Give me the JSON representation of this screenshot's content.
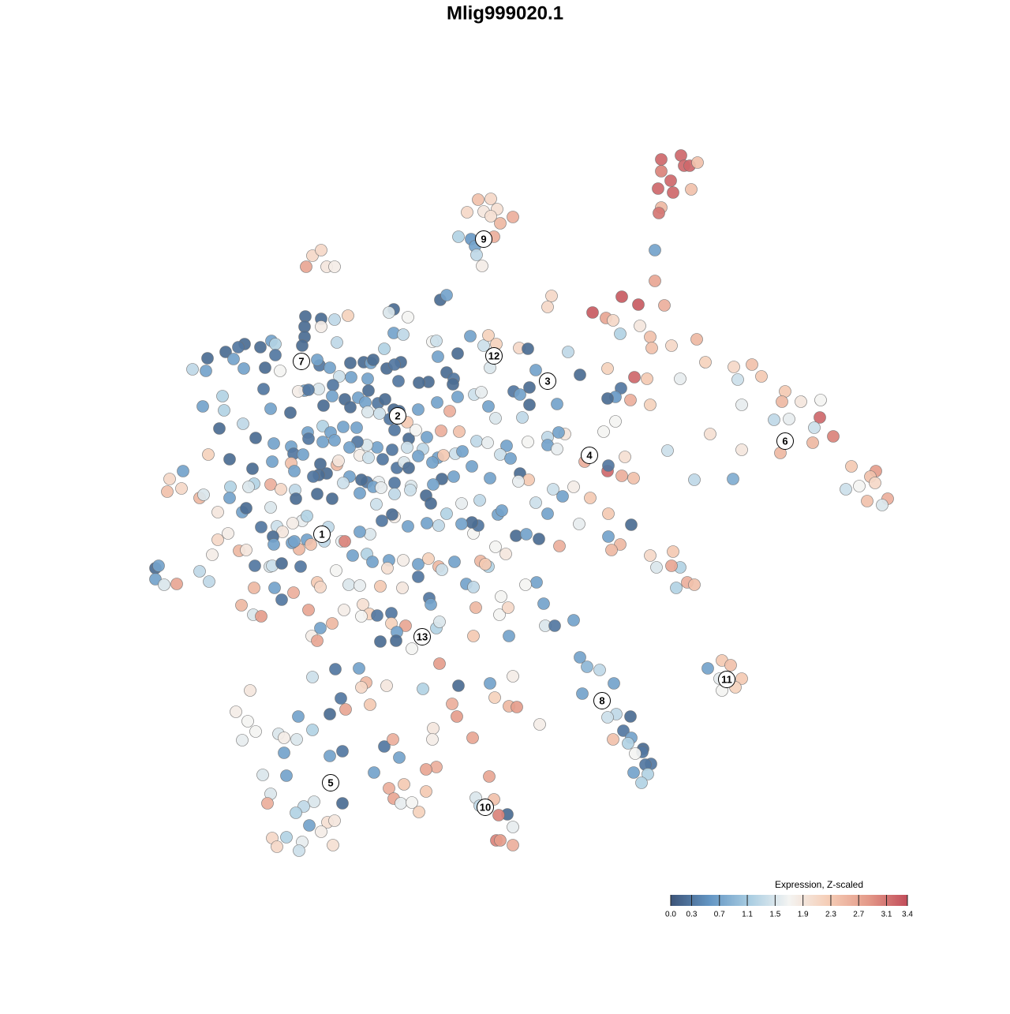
{
  "chart_data": {
    "type": "scatter",
    "title": "Mlig999020.1",
    "xlim": [
      0,
      1280
    ],
    "ylim": [
      1280,
      0
    ],
    "x": [
      838,
      863,
      867,
      874,
      884,
      838,
      850,
      834,
      853,
      876,
      838,
      835,
      830,
      830,
      606,
      622,
      592,
      613,
      630,
      622,
      650,
      634,
      581,
      597,
      626,
      602,
      604,
      611,
      396,
      407,
      388,
      414,
      424,
      699,
      694,
      788,
      809,
      751,
      768,
      777,
      842,
      811,
      786,
      824,
      826,
      851,
      883,
      770,
      804,
      820,
      862,
      787,
      780,
      770,
      799,
      824,
      894,
      930,
      953,
      965,
      935,
      940,
      995,
      1015,
      1040,
      1039,
      991,
      981,
      1000,
      1032,
      1056,
      1030,
      989,
      900,
      940,
      1079,
      1110,
      1103,
      1109,
      1072,
      1089,
      1125,
      1118,
      1099,
      929,
      880,
      846,
      770,
      771,
      788,
      803,
      792,
      748,
      771,
      800,
      771,
      786,
      775,
      824,
      853,
      832,
      862,
      851,
      871,
      880,
      857,
      897,
      915,
      926,
      940,
      915,
      932,
      912,
      735,
      744,
      760,
      778,
      738,
      781,
      770,
      799,
      790,
      800,
      777,
      796,
      815,
      814,
      805,
      825,
      818,
      821,
      803,
      813,
      620,
      626,
      603,
      608,
      643,
      632,
      650,
      629,
      634,
      650,
      299,
      314,
      324,
      307,
      317,
      353,
      360,
      376,
      378,
      396,
      418,
      360,
      434,
      418,
      333,
      363,
      398,
      343,
      339,
      385,
      375,
      392,
      415,
      424,
      407,
      383,
      363,
      345,
      351,
      379,
      422,
      434,
      432,
      438,
      396,
      425,
      455,
      464,
      458,
      490,
      469,
      487,
      498,
      506,
      474,
      493,
      512,
      499,
      508,
      522,
      531,
      540,
      553,
      540,
      549,
      548,
      599,
      573,
      579,
      581,
      536,
      557,
      621,
      627,
      650,
      645,
      655,
      684,
      558,
      566,
      499,
      493,
      517,
      441,
      424,
      407,
      387,
      386,
      386,
      383,
      407,
      499,
      511,
      427,
      344,
      349,
      330,
      310,
      286,
      263,
      296,
      302,
      349,
      336,
      355,
      309,
      261,
      244,
      405,
      418,
      402,
      444,
      461,
      470,
      473,
      490,
      508,
      500,
      487,
      548,
      553,
      555,
      580,
      596,
      613,
      619,
      629,
      658,
      669,
      621,
      566,
      575,
      574,
      679,
      720,
      735,
      543,
      531,
      505,
      466,
      445,
      430,
      422,
      404,
      386,
      378,
      334,
      391,
      282,
      257,
      284,
      343,
      368,
      410,
      421,
      437,
      444,
      454,
      467,
      463,
      479,
      488,
      499,
      494,
      506,
      516,
      530,
      554,
      570,
      580,
      601,
      610,
      619,
      651,
      659,
      671,
      671,
      706,
      662,
      628,
      278,
      308,
      390,
      409,
      419,
      435,
      452,
      466,
      481,
      500,
      518,
      527,
      541,
      559,
      582,
      555,
      536,
      516,
      497,
      478,
      465,
      453,
      443,
      424,
      409,
      391,
      369,
      372,
      347,
      324,
      264,
      291,
      320,
      345,
      369,
      384,
      406,
      414,
      427,
      429,
      443,
      456,
      467,
      485,
      503,
      512,
      518,
      530,
      548,
      562,
      577,
      586,
      604,
      618,
      642,
      669,
      694,
      716,
      708,
      694,
      706,
      741,
      765,
      780,
      634,
      647,
      659,
      670,
      657,
      621,
      598,
      575,
      560,
      549,
      521,
      500,
      480,
      465,
      458,
      435,
      404,
      397,
      373,
      343,
      322,
      315,
      292,
      291,
      276,
      307,
      312,
      343,
      356,
      374,
      375,
      402,
      421,
      456,
      477,
      473,
      483,
      500,
      520,
      540,
      546,
      566,
      585,
      608,
      631,
      636,
      679,
      701,
      713,
      727,
      694,
      734,
      232,
      215,
      230,
      212,
      253,
      258,
      197,
      201,
      197,
      208,
      224,
      253,
      265,
      269,
      276,
      289,
      303,
      312,
      323,
      342,
      345,
      357,
      381,
      379,
      389,
      394,
      408,
      416,
      433,
      437,
      447,
      465,
      472,
      493,
      491,
      511,
      530,
      543,
      556,
      560,
      576,
      609,
      619,
      641,
      351,
      383,
      358,
      346,
      370,
      347,
      331,
      322,
      348,
      357,
      372,
      402,
      406,
      426,
      442,
      306,
      321,
      331,
      391,
      395,
      402,
      406,
      421,
      436,
      456,
      460,
      468,
      478,
      496,
      458,
      496,
      514,
      503,
      482,
      502,
      522,
      544,
      546,
      553,
      557,
      600,
      603,
      633,
      644,
      645,
      635,
      689,
      691,
      703,
      727,
      680,
      666,
      591,
      600,
      482,
      510,
      530,
      654,
      667,
      683,
      709,
      628,
      615,
      600,
      606,
      598,
      585,
      556,
      541,
      517,
      500,
      484,
      497,
      469,
      456,
      411,
      373,
      389,
      371
    ],
    "y": [
      202,
      197,
      210,
      210,
      206,
      217,
      229,
      239,
      244,
      240,
      263,
      270,
      317,
      356,
      253,
      252,
      269,
      268,
      265,
      274,
      275,
      283,
      300,
      303,
      300,
      312,
      323,
      337,
      324,
      317,
      338,
      338,
      338,
      375,
      389,
      376,
      386,
      396,
      403,
      406,
      387,
      413,
      423,
      427,
      441,
      438,
      430,
      467,
      478,
      480,
      480,
      492,
      503,
      505,
      507,
      513,
      459,
      465,
      462,
      477,
      481,
      513,
      496,
      509,
      507,
      529,
      509,
      532,
      531,
      542,
      553,
      561,
      574,
      550,
      570,
      591,
      597,
      604,
      612,
      620,
      616,
      632,
      640,
      635,
      607,
      608,
      571,
      597,
      590,
      603,
      606,
      579,
      631,
      651,
      665,
      680,
      690,
      697,
      704,
      699,
      719,
      719,
      717,
      738,
      741,
      745,
      847,
      837,
      843,
      860,
      875,
      871,
      860,
      833,
      845,
      849,
      866,
      879,
      905,
      909,
      908,
      926,
      935,
      937,
      942,
      949,
      953,
      955,
      968,
      969,
      981,
      979,
      992,
      984,
      1013,
      1011,
      1021,
      1032,
      1033,
      1048,
      1065,
      1065,
      1071,
      902,
      914,
      927,
      938,
      875,
      930,
      935,
      937,
      908,
      925,
      905,
      954,
      952,
      958,
      982,
      983,
      1016,
      1006,
      1018,
      1022,
      1030,
      1046,
      1042,
      1040,
      1054,
      1067,
      1061,
      1062,
      1073,
      1078,
      1071,
      1018,
      885,
      899,
      858,
      848,
      847,
      865,
      871,
      869,
      893,
      946,
      937,
      960,
      979,
      999,
      994,
      1012,
      1018,
      1017,
      1029,
      1003,
      972,
      975,
      923,
      937,
      935,
      892,
      908,
      869,
      873,
      841,
      866,
      884,
      857,
      895,
      896,
      918,
      380,
      374,
      392,
      396,
      402,
      400,
      405,
      404,
      401,
      414,
      427,
      438,
      414,
      422,
      424,
      434,
      432,
      436,
      440,
      436,
      446,
      454,
      455,
      440,
      450,
      466,
      470,
      467,
      470,
      468,
      463,
      466,
      456,
      460,
      459,
      460,
      456,
      467,
      459,
      462,
      442,
      433,
      432,
      452,
      448,
      426,
      438,
      425,
      436,
      441,
      442,
      466,
      472,
      480,
      487,
      469,
      446,
      475,
      484,
      485,
      483,
      480,
      478,
      477,
      488,
      493,
      495,
      496,
      493,
      494,
      502,
      515,
      520,
      518,
      523,
      514,
      502,
      506,
      516,
      504,
      495,
      510,
      511,
      506,
      519,
      531,
      521,
      535,
      519,
      510,
      521,
      503,
      500,
      497,
      515,
      496,
      500,
      491,
      513,
      512,
      529,
      530,
      543,
      537,
      548,
      540,
      548,
      541,
      542,
      522,
      524,
      545,
      556,
      545,
      554,
      546,
      547,
      580,
      569,
      567,
      570,
      567,
      564,
      560,
      567,
      558,
      560,
      556,
      566,
      575,
      562,
      555,
      576,
      582,
      594,
      585,
      587,
      576,
      588,
      600,
      589,
      584,
      604,
      577,
      580,
      582,
      593,
      586,
      593,
      578,
      586,
      577,
      575,
      572,
      559,
      561,
      565,
      560,
      554,
      550,
      548,
      564,
      569,
      585,
      547,
      534,
      576,
      581,
      600,
      608,
      610,
      606,
      591,
      604,
      607,
      614,
      616,
      612,
      611,
      611,
      608,
      612,
      602,
      604,
      597,
      614,
      613,
      617,
      617,
      631,
      649,
      649,
      644,
      643,
      620,
      621,
      632,
      626,
      632,
      625,
      639,
      617,
      618,
      626,
      621,
      628,
      638,
      651,
      638,
      634,
      652,
      647,
      637,
      620,
      629,
      617,
      651,
      664,
      597,
      607,
      619,
      623,
      631,
      627,
      720,
      717,
      734,
      741,
      740,
      724,
      737,
      703,
      684,
      676,
      698,
      697,
      717,
      718,
      717,
      714,
      718,
      696,
      684,
      690,
      677,
      668,
      686,
      686,
      704,
      702,
      712,
      710,
      720,
      710,
      715,
      708,
      718,
      722,
      712,
      711,
      718,
      702,
      667,
      660,
      674,
      680,
      688,
      690,
      668,
      745,
      745,
      760,
      751,
      738,
      744,
      723,
      741,
      767,
      779,
      781,
      773,
      806,
      812,
      796,
      790,
      773,
      742,
      766,
      778,
      780,
      777,
      781,
      790,
      793,
      801,
      813,
      812,
      822,
      758,
      766,
      796,
      788,
      806,
      770,
      779,
      770,
      806,
      756,
      765,
      793,
      793,
      786,
      738,
      741,
      740,
      744,
      743,
      745,
      731,
      679,
      677,
      683,
      692,
      693,
      715,
      676,
      666,
      662,
      664,
      666,
      663,
      667,
      655,
      660,
      652,
      677,
      674,
      686,
      686,
      654,
      663
    ],
    "values": [
      3.2,
      3.2,
      3.2,
      3.2,
      2.4,
      3.0,
      3.2,
      3.2,
      3.2,
      2.4,
      2.5,
      3.1,
      0.7,
      2.7,
      2.4,
      2.1,
      2.1,
      1.9,
      2.0,
      2.0,
      2.6,
      2.5,
      1.2,
      0.6,
      2.6,
      0.7,
      1.3,
      1.8,
      2.1,
      2.1,
      2.7,
      1.9,
      1.8,
      2.1,
      2.1,
      3.3,
      3.3,
      3.3,
      2.7,
      2.1,
      2.6,
      1.9,
      1.2,
      2.4,
      2.4,
      2.1,
      2.5,
      2.2,
      3.2,
      2.3,
      1.6,
      0.3,
      0.6,
      0.2,
      2.6,
      2.2,
      2.2,
      2.1,
      2.4,
      2.3,
      1.4,
      1.6,
      2.3,
      1.9,
      1.7,
      3.2,
      2.5,
      1.3,
      1.6,
      1.4,
      3.0,
      2.5,
      2.5,
      2.0,
      1.9,
      2.3,
      2.8,
      2.4,
      2.1,
      1.4,
      1.7,
      2.6,
      1.5,
      2.4,
      0.8,
      1.3,
      1.4,
      3.2,
      0.3,
      2.6,
      2.4,
      2.0,
      2.3,
      2.3,
      0.2,
      0.7,
      2.5,
      2.5,
      2.1,
      2.3,
      1.5,
      1.2,
      2.7,
      2.6,
      2.4,
      1.2,
      0.7,
      2.3,
      2.4,
      2.3,
      1.7,
      2.2,
      1.6,
      0.7,
      0.9,
      1.3,
      0.7,
      0.7,
      1.3,
      1.4,
      0.2,
      0.3,
      0.7,
      2.4,
      1.2,
      0.2,
      0.3,
      1.7,
      0.3,
      0.3,
      1.2,
      0.7,
      1.2,
      2.7,
      2.4,
      1.5,
      1.3,
      0.2,
      3.0,
      1.6,
      3.0,
      2.8,
      2.6,
      1.8,
      1.7,
      1.7,
      1.6,
      1.9,
      1.5,
      1.8,
      1.5,
      0.7,
      1.2,
      0.2,
      0.7,
      0.3,
      0.7,
      1.5,
      0.7,
      1.5,
      1.5,
      2.6,
      1.3,
      1.2,
      0.7,
      2.0,
      1.9,
      1.8,
      1.6,
      1.2,
      2.1,
      2.1,
      1.4,
      2.0,
      0.2,
      0.3,
      2.7,
      1.4,
      0.3,
      0.7,
      2.5,
      2.1,
      1.9,
      2.3,
      0.3,
      2.6,
      0.7,
      0.7,
      2.6,
      2.3,
      2.7,
      1.6,
      1.7,
      2.2,
      2.3,
      2.6,
      2.7,
      1.9,
      1.8,
      2.7,
      2.6,
      2.8,
      0.2,
      1.2,
      2.8,
      0.7,
      2.2,
      1.8,
      2.5,
      2.8,
      1.8,
      0.2,
      0.7,
      0.2,
      1.5,
      1.7,
      2.2,
      1.3,
      0.2,
      0.2,
      0.2,
      0.2,
      0.2,
      1.8,
      0.7,
      1.3,
      1.3,
      0.7,
      1.2,
      0.2,
      0.2,
      0.2,
      0.2,
      0.7,
      0.3,
      0.3,
      0.2,
      1.7,
      0.7,
      0.7,
      1.3,
      0.3,
      0.7,
      0.7,
      0.2,
      0.2,
      0.7,
      0.2,
      0.2,
      0.2,
      0.3,
      1.2,
      1.7,
      1.4,
      0.7,
      0.2,
      0.7,
      1.4,
      2.2,
      2.2,
      2.1,
      0.2,
      1.5,
      0.2,
      0.3,
      0.2,
      0.7,
      1.3,
      0.2,
      0.2,
      0.2,
      0.3,
      0.7,
      0.7,
      1.4,
      0.3,
      1.5,
      0.7,
      1.8,
      0.3,
      0.3,
      1.2,
      0.7,
      1.2,
      0.7,
      0.2,
      0.2,
      0.7,
      0.2,
      0.2,
      0.7,
      0.2,
      0.7,
      0.3,
      0.2,
      0.2,
      0.3,
      0.2,
      2.3,
      0.7,
      0.7,
      2.6,
      0.7,
      1.4,
      1.6,
      0.7,
      0.3,
      0.7,
      0.2,
      0.2,
      0.7,
      1.3,
      1.5,
      0.2,
      1.3,
      0.7,
      1.2,
      0.7,
      0.7,
      0.7,
      1.5,
      1.4,
      0.3,
      0.2,
      1.7,
      0.7,
      2.6,
      2.4,
      0.7,
      1.3,
      1.4,
      0.3,
      0.7,
      1.5,
      0.3,
      0.7,
      0.7,
      0.7,
      0.3,
      0.7,
      0.3,
      0.7,
      0.2,
      2.2,
      0.2,
      0.2,
      0.7,
      2.4,
      0.7,
      0.2,
      0.2,
      2.5,
      1.9,
      0.7,
      1.8,
      1.4,
      0.3,
      0.3,
      1.5,
      0.2,
      0.7,
      0.7,
      2.3,
      1.4,
      0.7,
      1.3,
      1.6,
      0.7,
      1.7,
      1.3,
      1.9,
      0.7,
      0.7,
      1.6,
      2.6,
      1.7,
      1.7,
      1.4,
      0.7,
      0.2,
      2.3,
      1.6,
      0.7,
      0.7,
      0.7,
      0.2,
      0.7,
      1.5,
      0.3,
      1.6,
      0.3,
      0.2,
      1.4,
      0.2,
      0.3,
      0.7,
      2.6,
      1.2,
      1.5,
      1.2,
      0.7,
      1.9,
      0.7,
      0.2,
      1.5,
      2.1,
      1.3,
      0.2,
      0.2,
      0.2,
      0.7,
      1.4,
      0.7,
      1.6,
      1.3,
      1.4,
      0.2,
      0.2,
      1.2,
      1.6,
      1.3,
      0.7,
      0.7,
      1.4,
      1.4,
      0.7,
      1.8,
      0.7,
      1.6,
      0.7,
      2.1,
      2.1,
      2.4,
      2.5,
      1.5,
      0.2,
      0.7,
      0.7,
      1.5,
      2.7,
      1.3,
      1.3,
      1.8,
      2.1,
      1.8,
      2.5,
      1.9,
      0.3,
      1.5,
      1.4,
      0.2,
      0.3,
      2.5,
      0.7,
      2.4,
      1.6,
      1.3,
      1.6,
      3.0,
      0.7,
      1.2,
      0.7,
      0.7,
      2.0,
      1.8,
      0.7,
      2.2,
      2.5,
      1.4,
      0.7,
      2.5,
      1.2,
      1.9,
      1.4,
      1.6,
      1.9,
      0.2,
      0.7,
      0.7,
      0.3,
      2.5,
      0.7,
      0.3,
      2.6,
      2.3,
      2.1,
      1.7,
      1.5,
      2.5,
      1.5,
      2.8,
      2.7,
      1.8,
      2.7,
      0.7,
      2.5,
      1.8,
      1.6,
      2.0,
      2.2,
      0.3,
      0.3,
      1.7,
      2.2,
      2.7,
      0.7,
      0.2,
      0.2,
      1.7,
      0.3,
      0.7,
      1.2,
      1.5,
      2.3,
      2.5,
      1.7,
      2.1,
      0.7,
      1.7,
      0.7,
      1.5,
      0.3,
      0.7,
      0.7,
      1.7,
      0.7,
      1.3,
      2.3,
      1.9,
      0.3,
      0.2,
      0.7,
      0.2,
      2.6,
      1.7,
      2.3,
      1.7,
      0.3,
      0.2,
      0.7,
      1.3,
      0.7,
      0.7,
      1.8,
      0.3,
      0.2,
      1.5,
      0.7,
      1.3,
      0.7,
      1.2,
      1.8
    ],
    "cluster_labels": {
      "labels": [
        "1",
        "2",
        "3",
        "4",
        "5",
        "6",
        "7",
        "8",
        "9",
        "10",
        "11",
        "12",
        "13"
      ],
      "x": [
        408,
        504,
        694,
        747,
        419,
        995,
        382,
        763,
        613,
        615,
        921,
        626,
        535
      ],
      "y": [
        677,
        527,
        483,
        577,
        992,
        559,
        458,
        888,
        303,
        1023,
        861,
        451,
        807
      ]
    },
    "legend_title": "Expression, Z-scaled",
    "clim": [
      0,
      3.4
    ],
    "colors": [
      "#3d5579",
      "#6496c4",
      "#a9cde2",
      "#f4f4f2",
      "#f5cdb6",
      "#e49a89",
      "#c24d5a"
    ],
    "cticks": [
      {
        "value": 0,
        "label": "0.0"
      },
      0.3,
      0.7,
      1.1,
      1.5,
      1.9,
      2.3,
      2.7,
      3.1,
      3.4
    ]
  }
}
